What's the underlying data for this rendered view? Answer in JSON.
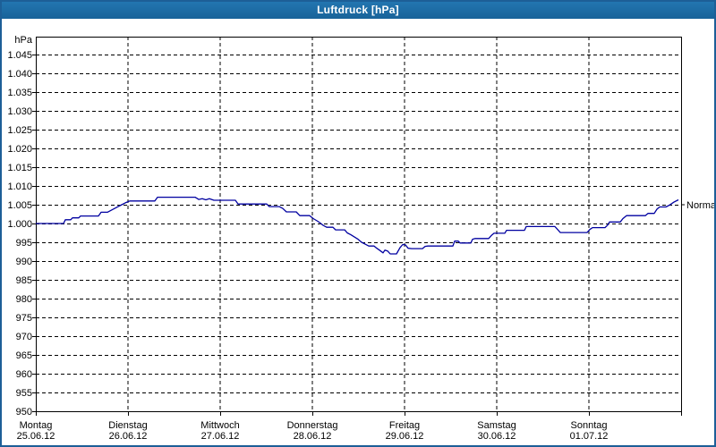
{
  "window": {
    "title": "Luftdruck [hPa]"
  },
  "colors": {
    "titlebar": "#1b6ba5",
    "window_border": "#1d5f97",
    "plot_frame": "#000000",
    "grid": "#000000",
    "line": "#0000a0",
    "text": "#000000",
    "background": "#ffffff"
  },
  "chart_data": {
    "type": "line",
    "title": "Luftdruck [hPa]",
    "unit_label": "hPa",
    "grid": "dashed",
    "legend_position": "none",
    "y_axis": {
      "min": 950,
      "max": 1045,
      "tick_step": 5,
      "ticks": [
        {
          "value": 1045,
          "label": "1.045"
        },
        {
          "value": 1040,
          "label": "1.040"
        },
        {
          "value": 1035,
          "label": "1.035"
        },
        {
          "value": 1030,
          "label": "1.030"
        },
        {
          "value": 1025,
          "label": "1.025"
        },
        {
          "value": 1020,
          "label": "1.020"
        },
        {
          "value": 1015,
          "label": "1.015"
        },
        {
          "value": 1010,
          "label": "1.010"
        },
        {
          "value": 1005,
          "label": "1.005"
        },
        {
          "value": 1000,
          "label": "1.000"
        },
        {
          "value": 995,
          "label": "995"
        },
        {
          "value": 990,
          "label": "990"
        },
        {
          "value": 985,
          "label": "985"
        },
        {
          "value": 980,
          "label": "980"
        },
        {
          "value": 975,
          "label": "975"
        },
        {
          "value": 970,
          "label": "970"
        },
        {
          "value": 965,
          "label": "965"
        },
        {
          "value": 960,
          "label": "960"
        },
        {
          "value": 955,
          "label": "955"
        },
        {
          "value": 950,
          "label": "950"
        }
      ]
    },
    "x_axis": {
      "days": [
        {
          "name": "Montag",
          "date": "25.06.12"
        },
        {
          "name": "Dienstag",
          "date": "26.06.12"
        },
        {
          "name": "Mittwoch",
          "date": "27.06.12"
        },
        {
          "name": "Donnerstag",
          "date": "28.06.12"
        },
        {
          "name": "Freitag",
          "date": "29.06.12"
        },
        {
          "name": "Samstag",
          "date": "30.06.12"
        },
        {
          "name": "Sonntag",
          "date": "01.07.12"
        }
      ],
      "span_days": 7
    },
    "normal_marker": {
      "value": 1005,
      "label": "Normal"
    },
    "series": [
      {
        "name": "Luftdruck",
        "color": "#0000a0",
        "points": [
          [
            0.0,
            1000
          ],
          [
            0.301,
            1000
          ],
          [
            0.32,
            1001
          ],
          [
            0.379,
            1001
          ],
          [
            0.398,
            1001.5
          ],
          [
            0.466,
            1001.5
          ],
          [
            0.485,
            1002
          ],
          [
            0.68,
            1002
          ],
          [
            0.709,
            1003
          ],
          [
            0.777,
            1003
          ],
          [
            0.816,
            1003.5
          ],
          [
            0.854,
            1004
          ],
          [
            0.893,
            1004.5
          ],
          [
            0.932,
            1005
          ],
          [
            0.971,
            1005.5
          ],
          [
            1.019,
            1006
          ],
          [
            1.291,
            1006
          ],
          [
            1.32,
            1007
          ],
          [
            1.728,
            1007
          ],
          [
            1.767,
            1006.4
          ],
          [
            1.806,
            1006.6
          ],
          [
            1.845,
            1006.3
          ],
          [
            1.883,
            1006.6
          ],
          [
            1.932,
            1006.2
          ],
          [
            2.165,
            1006.2
          ],
          [
            2.194,
            1005.2
          ],
          [
            2.505,
            1005.2
          ],
          [
            2.534,
            1004.5
          ],
          [
            2.641,
            1004.5
          ],
          [
            2.68,
            1004
          ],
          [
            2.718,
            1003.1
          ],
          [
            2.825,
            1003.1
          ],
          [
            2.864,
            1002.1
          ],
          [
            2.971,
            1002.1
          ],
          [
            3.01,
            1001.3
          ],
          [
            3.058,
            1000.6
          ],
          [
            3.087,
            1000.1
          ],
          [
            3.117,
            999.5
          ],
          [
            3.155,
            999
          ],
          [
            3.223,
            999
          ],
          [
            3.252,
            998.3
          ],
          [
            3.35,
            998.3
          ],
          [
            3.379,
            997.5
          ],
          [
            3.417,
            997
          ],
          [
            3.456,
            996.4
          ],
          [
            3.495,
            995.8
          ],
          [
            3.534,
            995
          ],
          [
            3.573,
            994.5
          ],
          [
            3.612,
            994
          ],
          [
            3.67,
            994
          ],
          [
            3.699,
            993.4
          ],
          [
            3.728,
            992.9
          ],
          [
            3.767,
            992.2
          ],
          [
            3.786,
            992.9
          ],
          [
            3.816,
            992.7
          ],
          [
            3.845,
            991.9
          ],
          [
            3.913,
            991.9
          ],
          [
            3.951,
            993.6
          ],
          [
            3.981,
            994.4
          ],
          [
            4.01,
            994.3
          ],
          [
            4.039,
            993.4
          ],
          [
            4.078,
            993.3
          ],
          [
            4.194,
            993.3
          ],
          [
            4.223,
            993.9
          ],
          [
            4.252,
            994
          ],
          [
            4.524,
            994
          ],
          [
            4.544,
            995.3
          ],
          [
            4.583,
            995.3
          ],
          [
            4.602,
            994.8
          ],
          [
            4.718,
            994.8
          ],
          [
            4.738,
            995.8
          ],
          [
            4.767,
            996
          ],
          [
            4.913,
            996
          ],
          [
            4.942,
            996.8
          ],
          [
            4.971,
            997.4
          ],
          [
            5.087,
            997.4
          ],
          [
            5.107,
            998.2
          ],
          [
            5.301,
            998.2
          ],
          [
            5.32,
            999.2
          ],
          [
            5.631,
            999.2
          ],
          [
            5.66,
            998.4
          ],
          [
            5.689,
            997.6
          ],
          [
            5.981,
            997.6
          ],
          [
            6.01,
            998.4
          ],
          [
            6.039,
            998.9
          ],
          [
            6.175,
            998.9
          ],
          [
            6.204,
            999.6
          ],
          [
            6.223,
            1000.4
          ],
          [
            6.34,
            1000.4
          ],
          [
            6.369,
            1001.3
          ],
          [
            6.408,
            1002.1
          ],
          [
            6.612,
            1002.1
          ],
          [
            6.641,
            1002.7
          ],
          [
            6.709,
            1002.7
          ],
          [
            6.738,
            1003.8
          ],
          [
            6.767,
            1004.4
          ],
          [
            6.835,
            1004.4
          ],
          [
            6.874,
            1004.9
          ],
          [
            6.922,
            1005.7
          ],
          [
            6.971,
            1006.3
          ]
        ]
      }
    ]
  }
}
